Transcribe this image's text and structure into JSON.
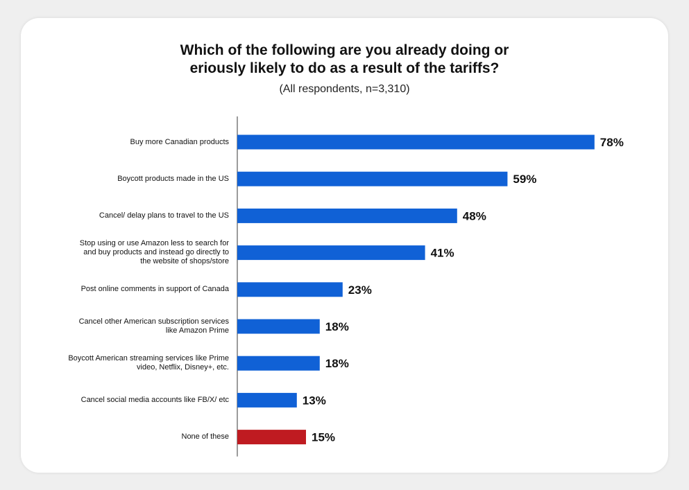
{
  "chart_data": {
    "type": "bar",
    "orientation": "horizontal",
    "title": [
      "Which of the following are you already doing or",
      "eriously likely to do as a result of the tariffs?"
    ],
    "subtitle": "(All respondents, n=3,310)",
    "xlim": [
      0,
      100
    ],
    "grid": false,
    "legend": "none",
    "categories": [
      "Buy more Canadian products",
      "Boycott products made in the US",
      "Cancel/ delay plans to travel to the US",
      "Stop using or use Amazon less to search for\nand buy products and instead go directly to\nthe website of shops/store",
      "Post online comments in support of Canada",
      "Cancel other American subscription services\nlike Amazon Prime",
      "Boycott American streaming services like Prime\nvideo, Netflix, Disney+, etc.",
      "Cancel social media accounts like FB/X/ etc",
      "None of these"
    ],
    "values": [
      78,
      59,
      48,
      41,
      23,
      18,
      18,
      13,
      15
    ],
    "value_labels": [
      "78%",
      "59%",
      "48%",
      "41%",
      "23%",
      "18%",
      "18%",
      "13%",
      "15%"
    ],
    "colors": [
      "#1061d6",
      "#1061d6",
      "#1061d6",
      "#1061d6",
      "#1061d6",
      "#1061d6",
      "#1061d6",
      "#1061d6",
      "#bf1b21"
    ]
  }
}
